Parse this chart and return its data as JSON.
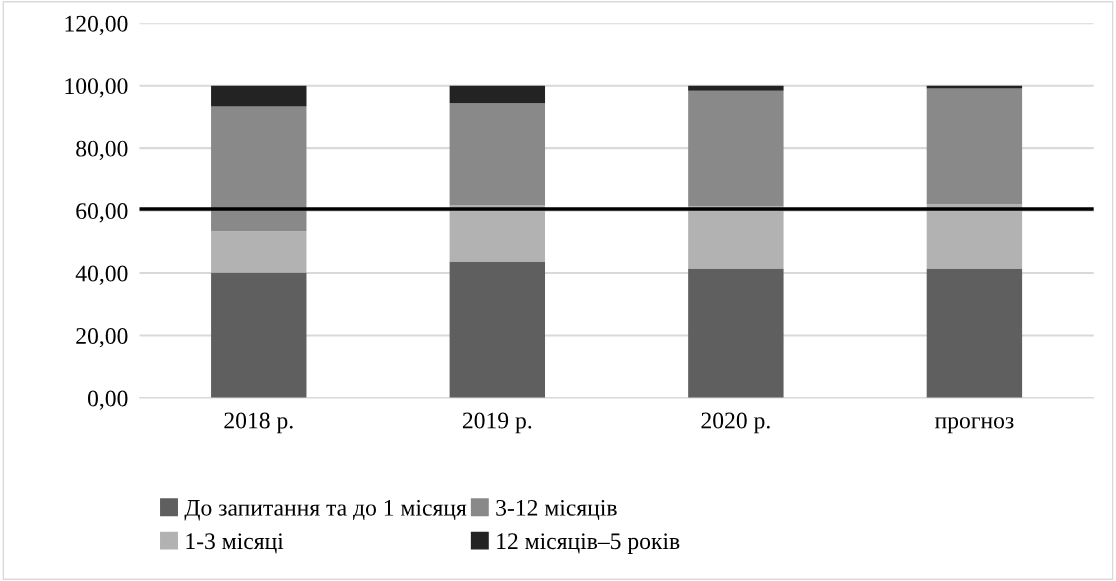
{
  "chart_data": {
    "type": "bar",
    "stacked": true,
    "categories": [
      "2018 р.",
      "2019 р.",
      "2020 р.",
      "прогноз"
    ],
    "series": [
      {
        "name": "До запитання та до 1 місяця",
        "color": "#5f5f5f",
        "values": [
          40.2,
          43.7,
          41.5,
          41.5
        ]
      },
      {
        "name": "1-3 місяці",
        "color": "#b2b2b2",
        "values": [
          13.2,
          17.9,
          19.9,
          20.5
        ]
      },
      {
        "name": "3-12 місяців",
        "color": "#898989",
        "values": [
          39.9,
          32.8,
          37.0,
          37.1
        ]
      },
      {
        "name": "12 місяців–5 років",
        "color": "#232323",
        "values": [
          6.7,
          5.6,
          1.6,
          0.9
        ]
      }
    ],
    "ylim": [
      0,
      120
    ],
    "yticks": [
      {
        "value": 0,
        "label": "0,00"
      },
      {
        "value": 20,
        "label": "20,00"
      },
      {
        "value": 40,
        "label": "40,00"
      },
      {
        "value": 60,
        "label": "60,00"
      },
      {
        "value": 80,
        "label": "80,00"
      },
      {
        "value": 100,
        "label": "100,00"
      },
      {
        "value": 120,
        "label": "120,00"
      }
    ],
    "grid": "y",
    "legend": "bottom",
    "ref_lines": [
      {
        "axis": "y",
        "value": 60.5,
        "color": "#000000",
        "line_style": "solid"
      }
    ]
  }
}
